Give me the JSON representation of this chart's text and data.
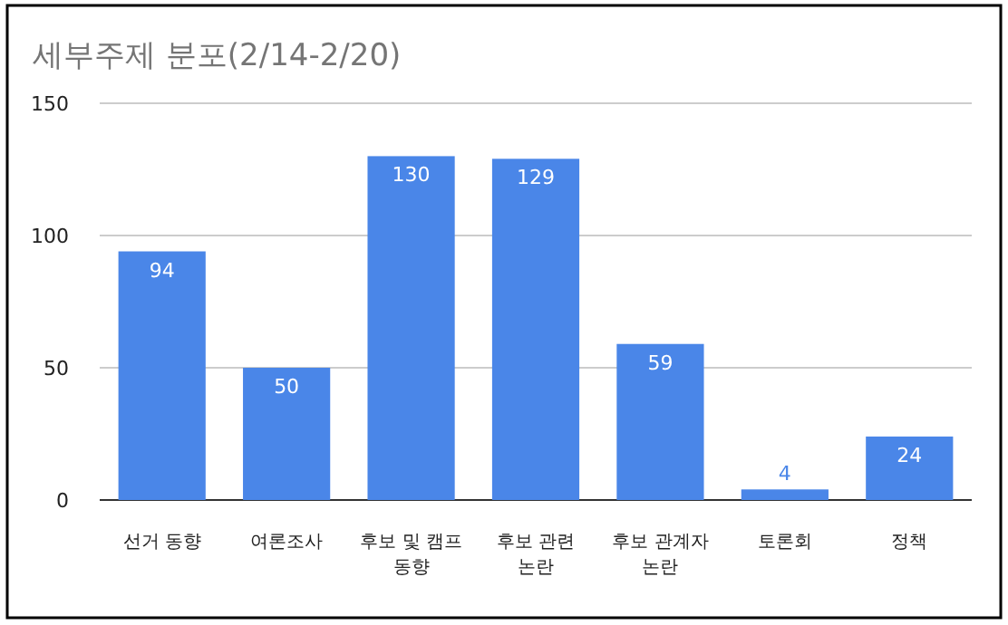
{
  "chart_data": {
    "type": "bar",
    "title": "세부주제 분포(2/14-2/20)",
    "categories": [
      "선거 동향",
      "여론조사",
      "후보 및 캠프 동향",
      "후보 관련 논란",
      "후보 관계자 논란",
      "토론회",
      "정책"
    ],
    "values": [
      94,
      50,
      130,
      129,
      59,
      4,
      24
    ],
    "color": "#4a86e8",
    "ylim": [
      0,
      150
    ],
    "yticks": [
      0,
      50,
      100,
      150
    ],
    "grid": "y",
    "data_labels": true
  }
}
